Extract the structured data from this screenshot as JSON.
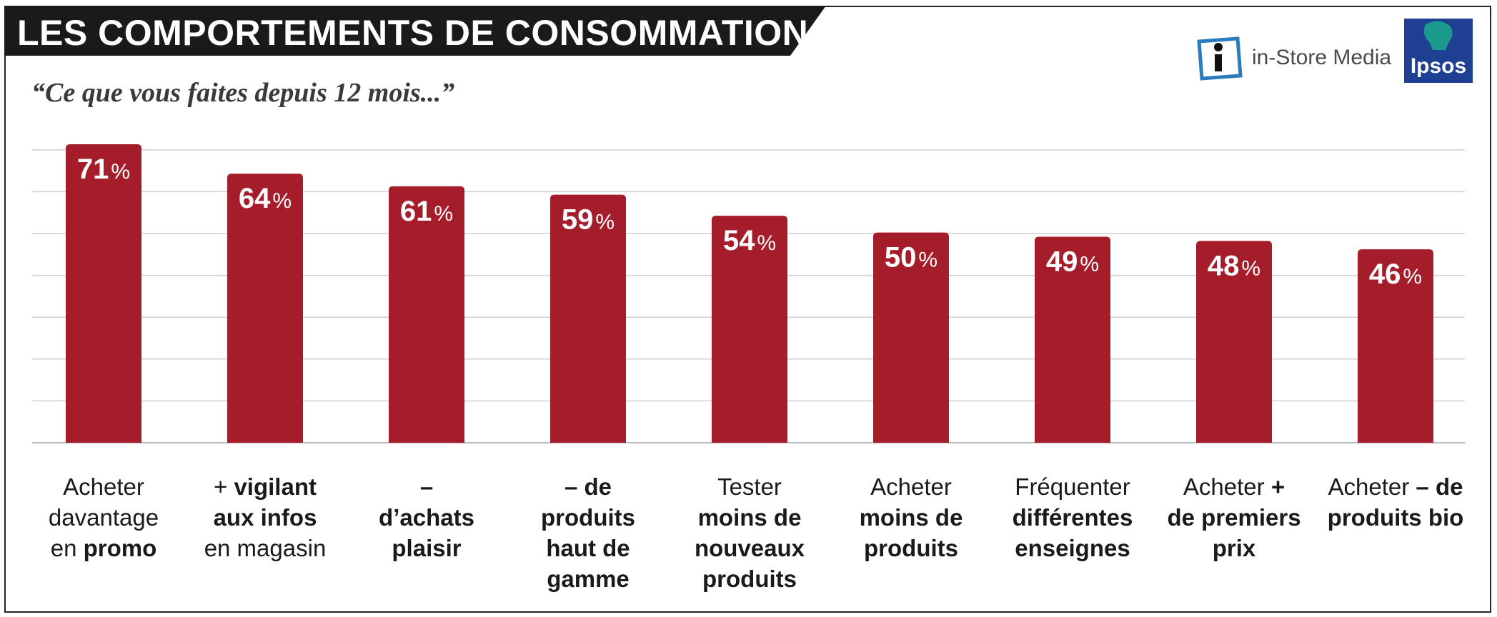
{
  "header": {
    "title": "LES COMPORTEMENTS DE CONSOMMATION",
    "subtitle": "“Ce que vous faites depuis 12 mois...”"
  },
  "logos": {
    "instore": {
      "text": "in-Store Media",
      "icon": "info-i-icon"
    },
    "ipsos": {
      "text": "Ipsos",
      "icon": "ipsos-head-icon"
    }
  },
  "colors": {
    "bar": "#a51c2a",
    "banner": "#1a1a1a",
    "gridline": "#d0d0d0",
    "ipsos_blue": "#1f3f93",
    "ipsos_teal": "#1a9a8c",
    "instore_blue": "#2b7bbf"
  },
  "chart_data": {
    "type": "bar",
    "title": "",
    "xlabel": "",
    "ylabel": "",
    "ylim": [
      0,
      100
    ],
    "grid": true,
    "unit": "%",
    "categories": [
      [
        {
          "t": "Acheter",
          "b": false
        },
        {
          "t": "|",
          "b": false
        },
        {
          "t": "davantage",
          "b": false
        },
        {
          "t": "|",
          "b": false
        },
        {
          "t": "en ",
          "b": false
        },
        {
          "t": "promo",
          "b": true
        }
      ],
      [
        {
          "t": "+ ",
          "b": false
        },
        {
          "t": "vigilant",
          "b": true
        },
        {
          "t": "|",
          "b": false
        },
        {
          "t": "aux infos",
          "b": true
        },
        {
          "t": "|",
          "b": false
        },
        {
          "t": "en magasin",
          "b": false
        }
      ],
      [
        {
          "t": "–",
          "b": true
        },
        {
          "t": "|",
          "b": false
        },
        {
          "t": "d’achats",
          "b": true
        },
        {
          "t": "|",
          "b": false
        },
        {
          "t": "plaisir",
          "b": true
        }
      ],
      [
        {
          "t": "– de",
          "b": true
        },
        {
          "t": "|",
          "b": false
        },
        {
          "t": "produits",
          "b": true
        },
        {
          "t": "|",
          "b": false
        },
        {
          "t": "haut de",
          "b": true
        },
        {
          "t": "|",
          "b": false
        },
        {
          "t": "gamme",
          "b": true
        }
      ],
      [
        {
          "t": "Tester",
          "b": false
        },
        {
          "t": "|",
          "b": false
        },
        {
          "t": "moins de",
          "b": true
        },
        {
          "t": "|",
          "b": false
        },
        {
          "t": "nouveaux",
          "b": true
        },
        {
          "t": "|",
          "b": false
        },
        {
          "t": "produits",
          "b": true
        }
      ],
      [
        {
          "t": "Acheter",
          "b": false
        },
        {
          "t": "|",
          "b": false
        },
        {
          "t": "moins de",
          "b": true
        },
        {
          "t": "|",
          "b": false
        },
        {
          "t": "produits",
          "b": true
        }
      ],
      [
        {
          "t": "Fréquenter",
          "b": false
        },
        {
          "t": "|",
          "b": false
        },
        {
          "t": "différentes",
          "b": true
        },
        {
          "t": "|",
          "b": false
        },
        {
          "t": "enseignes",
          "b": true
        }
      ],
      [
        {
          "t": "Acheter ",
          "b": false
        },
        {
          "t": "+",
          "b": true
        },
        {
          "t": "|",
          "b": false
        },
        {
          "t": "de premiers",
          "b": true
        },
        {
          "t": "|",
          "b": false
        },
        {
          "t": "prix",
          "b": true
        }
      ],
      [
        {
          "t": "Acheter ",
          "b": false
        },
        {
          "t": "– de",
          "b": true
        },
        {
          "t": "|",
          "b": false
        },
        {
          "t": "produits bio",
          "b": true
        }
      ]
    ],
    "values": [
      71,
      64,
      61,
      59,
      54,
      50,
      49,
      48,
      46
    ],
    "value_labels": [
      "71",
      "64",
      "61",
      "59",
      "54",
      "50",
      "49",
      "48",
      "46"
    ]
  }
}
